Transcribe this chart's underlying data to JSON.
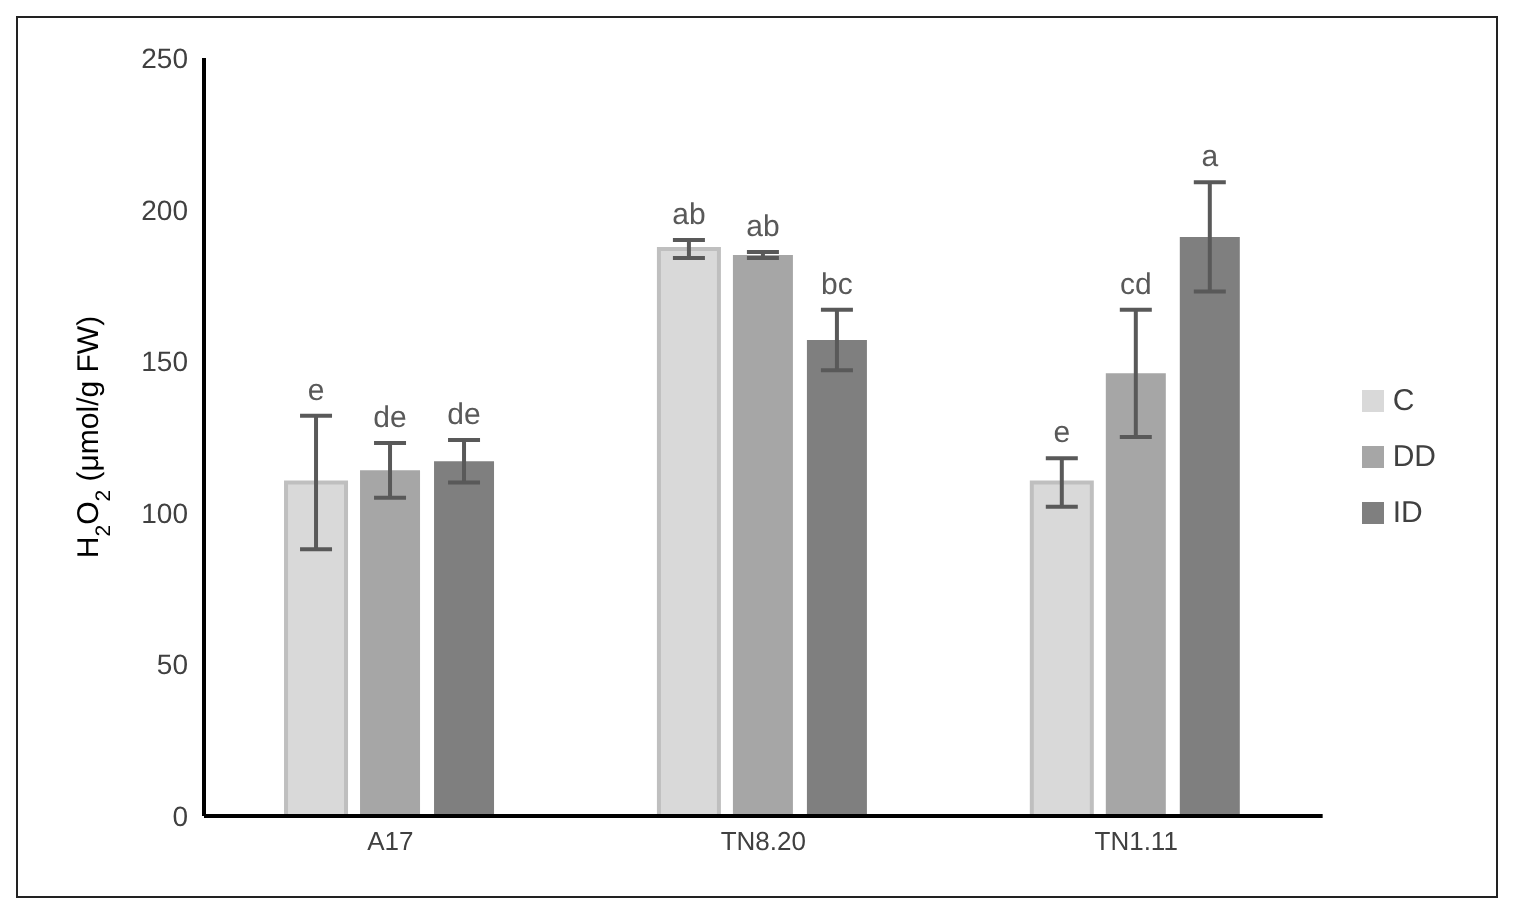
{
  "chart_data": {
    "type": "bar",
    "categories": [
      "A17",
      "TN8.20",
      "TN1.11"
    ],
    "series": [
      {
        "name": "C",
        "color": "#d9d9d9",
        "values": [
          110,
          187,
          110
        ],
        "errors": [
          22,
          3,
          8
        ]
      },
      {
        "name": "DD",
        "color": "#a6a6a6",
        "values": [
          114,
          185,
          146
        ],
        "errors": [
          9,
          1,
          21
        ]
      },
      {
        "name": "ID",
        "color": "#7f7f7f",
        "values": [
          117,
          157,
          191
        ],
        "errors": [
          7,
          10,
          18
        ]
      }
    ],
    "ylabel": "H$_{2}$O$_{2}$ (μmol/g FW)",
    "ylim": [
      0,
      250
    ],
    "yticks": [
      0,
      50,
      100,
      150,
      200,
      250
    ],
    "grid": false,
    "legend": "right",
    "annotations": [
      "e",
      "de",
      "de",
      "ab",
      "ab",
      "bc",
      "e",
      "cd",
      "a"
    ]
  }
}
